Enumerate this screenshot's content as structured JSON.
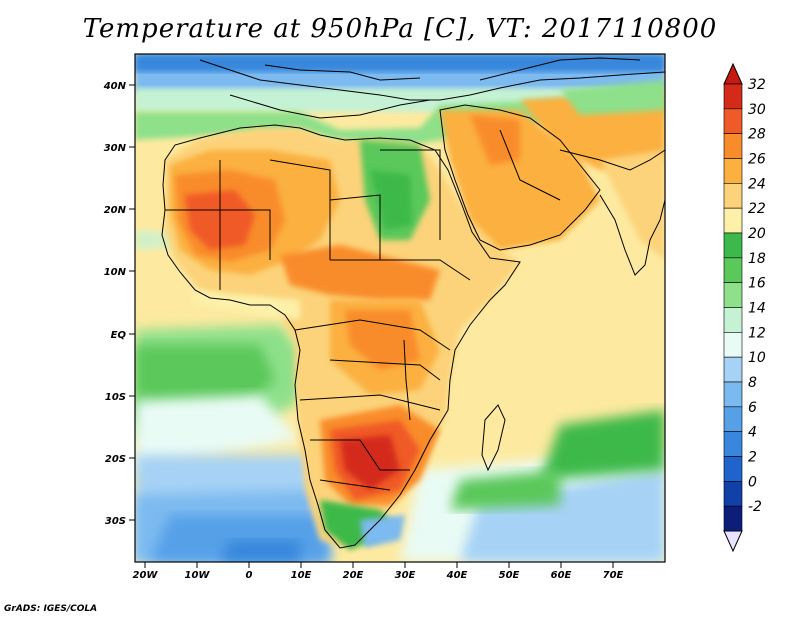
{
  "title": "Temperature at 950hPa [C], VT: 2017110800",
  "credit": "GrADS: IGES/COLA",
  "map": {
    "lat_ticks": [
      "40N",
      "30N",
      "20N",
      "10N",
      "EQ",
      "10S",
      "20S",
      "30S"
    ],
    "lon_ticks": [
      "20W",
      "10W",
      "0",
      "10E",
      "20E",
      "30E",
      "40E",
      "50E",
      "60E",
      "70E"
    ]
  },
  "colorbar": {
    "labels": [
      "32",
      "30",
      "28",
      "26",
      "24",
      "22",
      "20",
      "18",
      "16",
      "14",
      "12",
      "10",
      "8",
      "6",
      "4",
      "2",
      "0",
      "-2"
    ],
    "colors": [
      "#d42a1a",
      "#f05a28",
      "#f98c2a",
      "#fbb040",
      "#fcd37a",
      "#fdf0a8",
      "#3cb94a",
      "#5ac85a",
      "#8ee08a",
      "#c5f2d4",
      "#e9fbf5",
      "#a6d2f5",
      "#7bbaf0",
      "#56a0e8",
      "#3987dc",
      "#1f63cc",
      "#1140a8",
      "#0c1e7a"
    ],
    "top_arrow_color": "#c81a10",
    "bottom_arrow_color": "#e8e4ff"
  }
}
